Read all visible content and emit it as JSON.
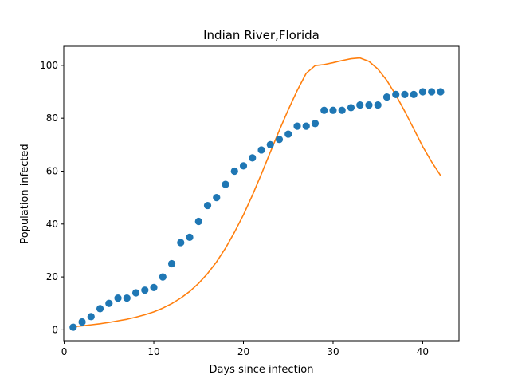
{
  "chart_data": {
    "type": "scatter",
    "title": "Indian River,Florida",
    "xlabel": "Days since infection",
    "ylabel": "Population infected",
    "xlim": [
      -0.05,
      44.05
    ],
    "ylim": [
      -4.1,
      107.2
    ],
    "xticks": [
      0,
      10,
      20,
      30,
      40
    ],
    "yticks": [
      0,
      20,
      40,
      60,
      80,
      100
    ],
    "grid": false,
    "legend": "none",
    "series": [
      {
        "kind": "scatter",
        "color": "#1f77b4",
        "x": [
          1,
          2,
          3,
          4,
          5,
          6,
          7,
          8,
          9,
          10,
          11,
          12,
          13,
          14,
          15,
          16,
          17,
          18,
          19,
          20,
          21,
          22,
          23,
          24,
          25,
          26,
          27,
          28,
          29,
          30,
          31,
          32,
          33,
          34,
          35,
          36,
          37,
          38,
          39,
          40,
          41,
          42
        ],
        "y": [
          1,
          3,
          5,
          8,
          10,
          12,
          12,
          14,
          15,
          16,
          20,
          25,
          33,
          35,
          41,
          47,
          50,
          55,
          60,
          62,
          65,
          68,
          70,
          72,
          74,
          77,
          77,
          78,
          83,
          83,
          83,
          84,
          85,
          85,
          85,
          88,
          89,
          89,
          89,
          90,
          90,
          90
        ]
      },
      {
        "kind": "line",
        "color": "#ff7f0e",
        "x": [
          1,
          2,
          3,
          4,
          5,
          6,
          7,
          8,
          9,
          10,
          11,
          12,
          13,
          14,
          15,
          16,
          17,
          18,
          19,
          20,
          21,
          22,
          23,
          24,
          25,
          26,
          27,
          28,
          29,
          30,
          31,
          32,
          33,
          34,
          35,
          36,
          37,
          38,
          39,
          40,
          41,
          42
        ],
        "y": [
          1.2,
          1.5,
          1.9,
          2.3,
          2.8,
          3.4,
          4.0,
          4.8,
          5.7,
          6.8,
          8.2,
          9.9,
          12.0,
          14.5,
          17.6,
          21.3,
          25.7,
          30.9,
          36.9,
          43.5,
          50.9,
          58.9,
          67.2,
          75.4,
          83.2,
          90.5,
          97.0,
          99.9,
          100.3,
          101.0,
          101.8,
          102.5,
          102.8,
          101.5,
          98.6,
          94.3,
          88.8,
          82.6,
          76.0,
          69.3,
          63.5,
          58.3
        ]
      }
    ]
  }
}
